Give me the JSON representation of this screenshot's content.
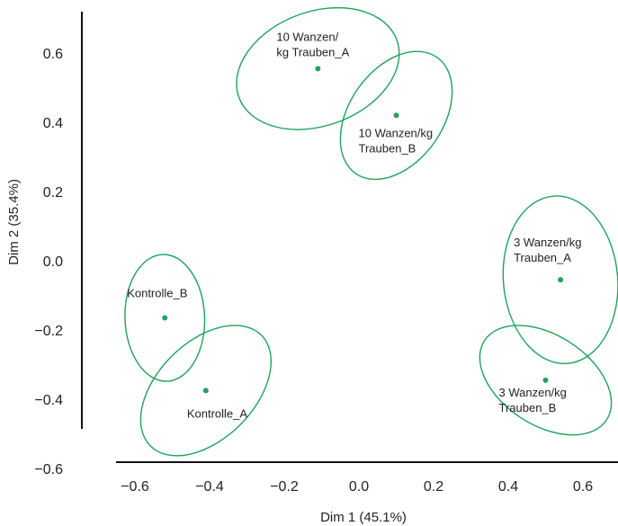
{
  "chart_data": {
    "type": "scatter",
    "title": "",
    "xlabel": "Dim 1 (45.1%)",
    "ylabel": "Dim 2 (35.4%)",
    "xlim": [
      -0.65,
      0.7
    ],
    "ylim": [
      -0.65,
      0.7
    ],
    "xticks": [
      -0.6,
      -0.4,
      -0.2,
      0.0,
      0.2,
      0.4,
      0.6
    ],
    "xtick_labels": [
      "−0.6",
      "−0.4",
      "−0.2",
      "0.0",
      "0.2",
      "0.4",
      "0.6"
    ],
    "yticks": [
      -0.6,
      -0.4,
      -0.2,
      0.0,
      0.2,
      0.4,
      0.6
    ],
    "ytick_labels": [
      "−0.6",
      "−0.4",
      "−0.2",
      "0.0",
      "0.2",
      "0.4",
      "0.6"
    ],
    "grid": false,
    "color": "#1fa35a",
    "points": [
      {
        "label_lines": [
          "10 Wanzen/",
          "kg Trauben_A"
        ],
        "x": -0.11,
        "y": 0.555,
        "label_pos": "top-left",
        "ellipse": {
          "rx": 0.225,
          "ry": 0.165,
          "rotation": 20
        }
      },
      {
        "label_lines": [
          "10 Wanzen/kg",
          "Trauben_B"
        ],
        "x": 0.1,
        "y": 0.42,
        "label_pos": "bottom-left",
        "ellipse": {
          "rx": 0.19,
          "ry": 0.135,
          "rotation": 55
        }
      },
      {
        "label_lines": [
          "3 Wanzen/kg",
          "Trauben_A"
        ],
        "x": 0.54,
        "y": -0.055,
        "label_pos": "top-left",
        "ellipse": {
          "rx": 0.225,
          "ry": 0.165,
          "rotation": 95
        }
      },
      {
        "label_lines": [
          "3 Wanzen/kg",
          "Trauben_B"
        ],
        "x": 0.5,
        "y": -0.345,
        "label_pos": "bottom-left",
        "ellipse": {
          "rx": 0.195,
          "ry": 0.13,
          "rotation": -33
        }
      },
      {
        "label_lines": [
          "Kontrolle_B"
        ],
        "x": -0.52,
        "y": -0.165,
        "label_pos": "top-left",
        "ellipse": {
          "rx": 0.17,
          "ry": 0.115,
          "rotation": 92
        }
      },
      {
        "label_lines": [
          "Kontrolle_A"
        ],
        "x": -0.41,
        "y": -0.375,
        "label_pos": "bottom-left",
        "ellipse": {
          "rx": 0.21,
          "ry": 0.14,
          "rotation": 45
        }
      }
    ]
  }
}
